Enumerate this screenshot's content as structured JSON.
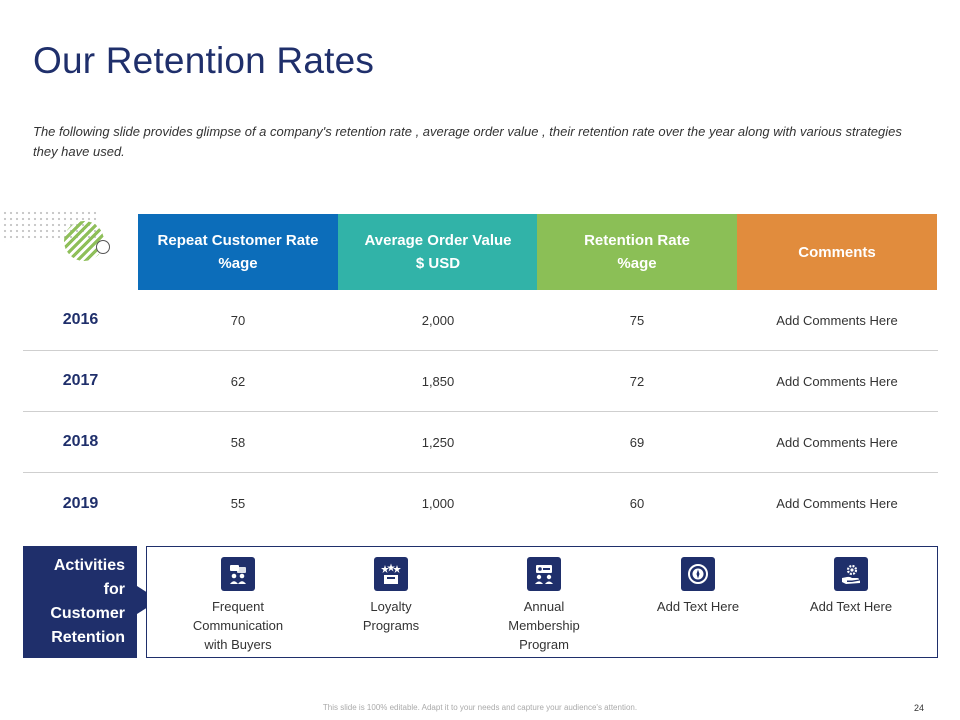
{
  "slide": {
    "title": "Our Retention Rates",
    "subtitle": "The following slide provides glimpse of a company's retention rate , average order value , their retention rate over the year along with various strategies they have used."
  },
  "table": {
    "headers": [
      {
        "line1": "Repeat Customer Rate",
        "line2": "%age",
        "color": "#0c6dba"
      },
      {
        "line1": "Average Order Value",
        "line2": "$ USD",
        "color": "#31b3a8"
      },
      {
        "line1": "Retention Rate",
        "line2": "%age",
        "color": "#8bbf56"
      },
      {
        "line1": "Comments",
        "line2": "",
        "color": "#e18c3d"
      }
    ],
    "rows": [
      {
        "year": "2016",
        "repeat": "70",
        "aov": "2,000",
        "retention": "75",
        "comment": "Add Comments Here"
      },
      {
        "year": "2017",
        "repeat": "62",
        "aov": "1,850",
        "retention": "72",
        "comment": "Add Comments Here"
      },
      {
        "year": "2018",
        "repeat": "58",
        "aov": "1,250",
        "retention": "69",
        "comment": "Add Comments Here"
      },
      {
        "year": "2019",
        "repeat": "55",
        "aov": "1,000",
        "retention": "60",
        "comment": "Add Comments Here"
      }
    ]
  },
  "activities": {
    "label_lines": [
      "Activities",
      "for",
      "Customer",
      "Retention"
    ],
    "items": [
      {
        "lines": [
          "Frequent",
          "Communication",
          "with Buyers"
        ],
        "icon": "chat-group-icon"
      },
      {
        "lines": [
          "Loyalty",
          "Programs"
        ],
        "icon": "award-stars-icon"
      },
      {
        "lines": [
          "Annual",
          "Membership",
          "Program"
        ],
        "icon": "membership-card-icon"
      },
      {
        "lines": [
          "Add Text Here"
        ],
        "icon": "compass-icon"
      },
      {
        "lines": [
          "Add Text Here"
        ],
        "icon": "hand-gear-icon"
      }
    ]
  },
  "footer": {
    "note": "This slide is 100% editable. Adapt it to your needs and capture your audience's attention.",
    "page_number": "24"
  },
  "colors": {
    "navy": "#1f2f6b",
    "blue": "#0c6dba",
    "teal": "#31b3a8",
    "green": "#8bbf56",
    "orange": "#e18c3d"
  }
}
